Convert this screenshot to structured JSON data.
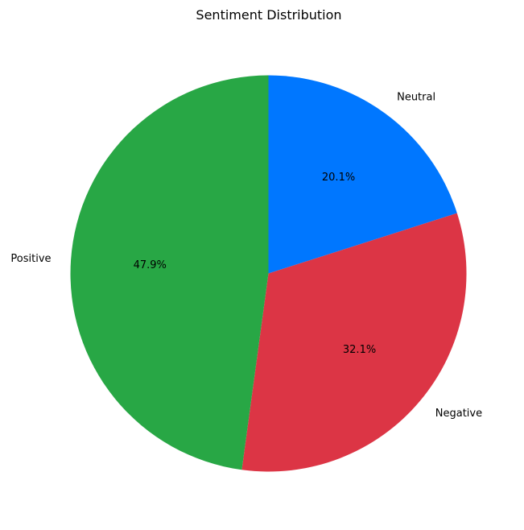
{
  "chart_data": {
    "type": "pie",
    "title": "Sentiment Distribution",
    "labels": [
      "Neutral",
      "Negative",
      "Positive"
    ],
    "values": [
      20.1,
      32.1,
      47.9
    ],
    "percent_labels": [
      "20.1%",
      "32.1%",
      "47.9%"
    ],
    "colors": [
      "#0077ff",
      "#dc3545",
      "#28a745"
    ],
    "start_angle_deg": 90,
    "direction": "clockwise"
  }
}
